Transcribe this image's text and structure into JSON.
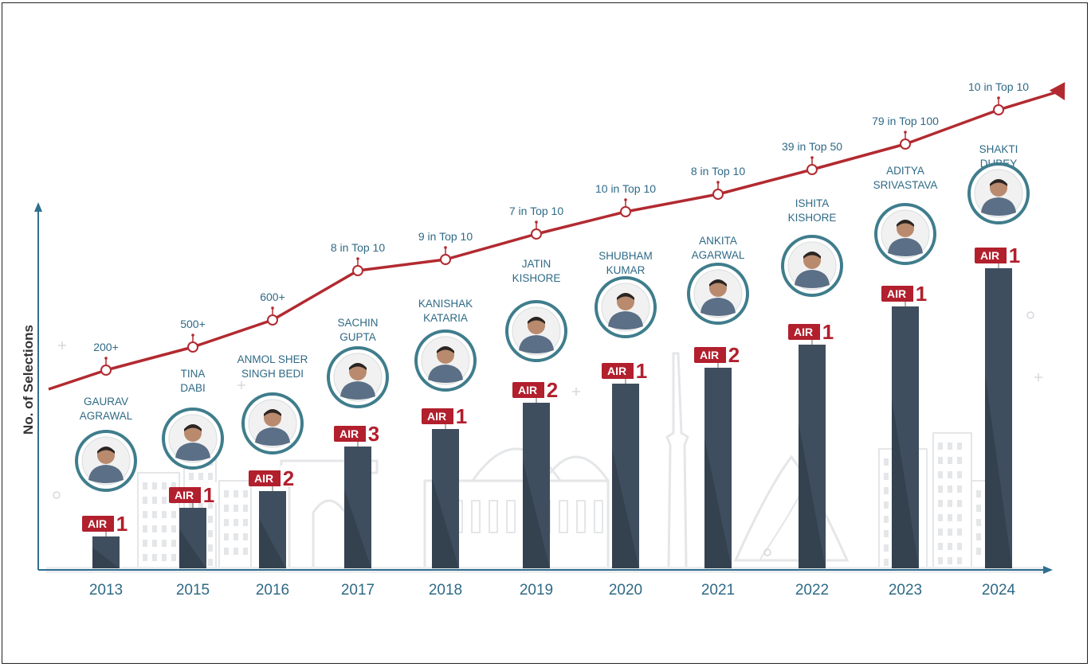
{
  "chart_data": {
    "type": "bar",
    "title": "",
    "xlabel": "",
    "ylabel": "No. of Selections",
    "categories": [
      "2013",
      "2015",
      "2016",
      "2017",
      "2018",
      "2019",
      "2020",
      "2021",
      "2022",
      "2023",
      "2024"
    ],
    "values": [
      1,
      2,
      3,
      4,
      5,
      6,
      7,
      8,
      9,
      10,
      11
    ],
    "trend_labels": [
      "200+",
      "500+",
      "600+",
      "8 in Top 10",
      "9 in Top 10",
      "7 in Top 10",
      "10 in Top 10",
      "8 in Top 10",
      "39 in Top 50",
      "79 in Top 100",
      "10 in Top 10"
    ],
    "toppers": [
      {
        "name_line1": "GAURAV",
        "name_line2": "AGRAWAL",
        "rank": "1"
      },
      {
        "name_line1": "TINA",
        "name_line2": "DABI",
        "rank": "1"
      },
      {
        "name_line1": "ANMOL SHER",
        "name_line2": "SINGH BEDI",
        "rank": "2"
      },
      {
        "name_line1": "SACHIN",
        "name_line2": "GUPTA",
        "rank": "3"
      },
      {
        "name_line1": "KANISHAK",
        "name_line2": "KATARIA",
        "rank": "1"
      },
      {
        "name_line1": "JATIN",
        "name_line2": "KISHORE",
        "rank": "2"
      },
      {
        "name_line1": "SHUBHAM",
        "name_line2": "KUMAR",
        "rank": "1"
      },
      {
        "name_line1": "ANKITA",
        "name_line2": "AGARWAL",
        "rank": "2"
      },
      {
        "name_line1": "ISHITA",
        "name_line2": "KISHORE",
        "rank": "1"
      },
      {
        "name_line1": "ADITYA",
        "name_line2": "SRIVASTAVA",
        "rank": "1"
      },
      {
        "name_line1": "SHAKTI",
        "name_line2": "DUBEY",
        "rank": "1"
      }
    ],
    "badge_prefix": "AIR",
    "grid": false,
    "legend": "none",
    "colors": {
      "bar": "#3f4e5e",
      "bar_light": "#55636f",
      "trend": "#b22a30",
      "badge": "#b21f2d",
      "text": "#2f6a86",
      "axis": "#2f6f8f",
      "avatar_ring": "#3f7d8c",
      "skyline": "#e4e6e8"
    }
  }
}
